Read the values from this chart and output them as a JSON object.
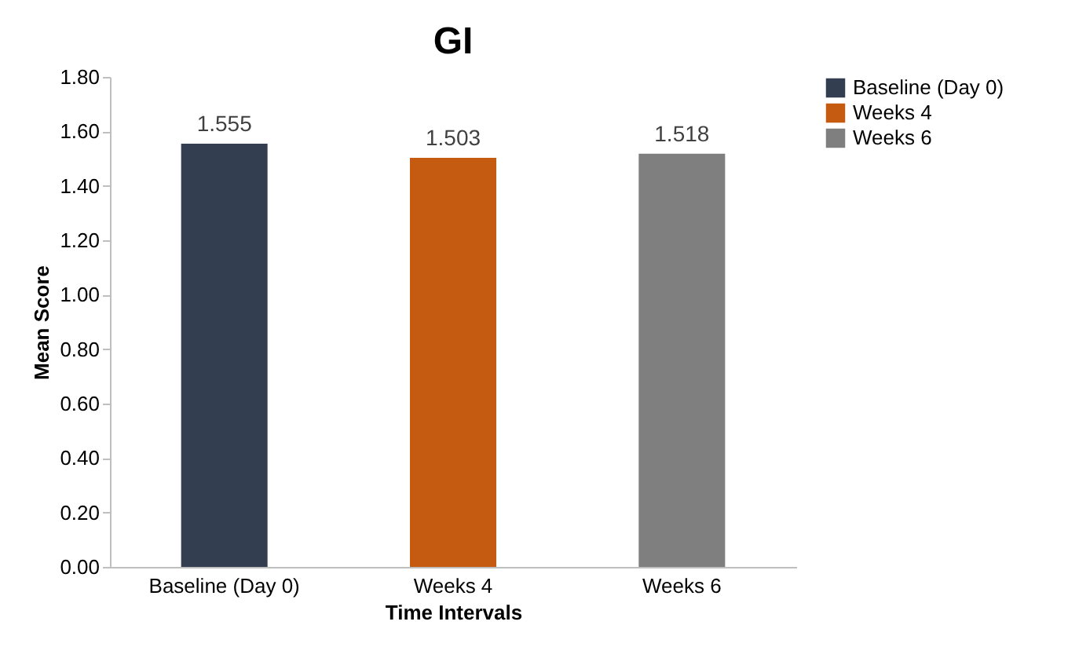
{
  "chart_data": {
    "type": "bar",
    "title": "GI",
    "xlabel": "Time Intervals",
    "ylabel": "Mean Score",
    "categories": [
      "Baseline (Day 0)",
      "Weeks 4",
      "Weeks 6"
    ],
    "series": [
      {
        "name": "Baseline (Day 0)",
        "color": "#333f50",
        "values": [
          1.555,
          null,
          null
        ]
      },
      {
        "name": "Weeks 4",
        "color": "#c55a11",
        "values": [
          null,
          1.503,
          null
        ]
      },
      {
        "name": "Weeks 6",
        "color": "#7f7f7f",
        "values": [
          null,
          null,
          1.518
        ]
      }
    ],
    "ylim": [
      0,
      1.8
    ],
    "yticks": [
      {
        "value": 0,
        "label": "0.00"
      },
      {
        "value": 0.2,
        "label": "0.20"
      },
      {
        "value": 0.4,
        "label": "0.40"
      },
      {
        "value": 0.6,
        "label": "0.60"
      },
      {
        "value": 0.8,
        "label": "0.80"
      },
      {
        "value": 1.0,
        "label": "1.00"
      },
      {
        "value": 1.2,
        "label": "1.20"
      },
      {
        "value": 1.4,
        "label": "1.40"
      },
      {
        "value": 1.6,
        "label": "1.60"
      },
      {
        "value": 1.8,
        "label": "1.80"
      }
    ],
    "data_labels": true,
    "grid": false,
    "legend": "right"
  }
}
